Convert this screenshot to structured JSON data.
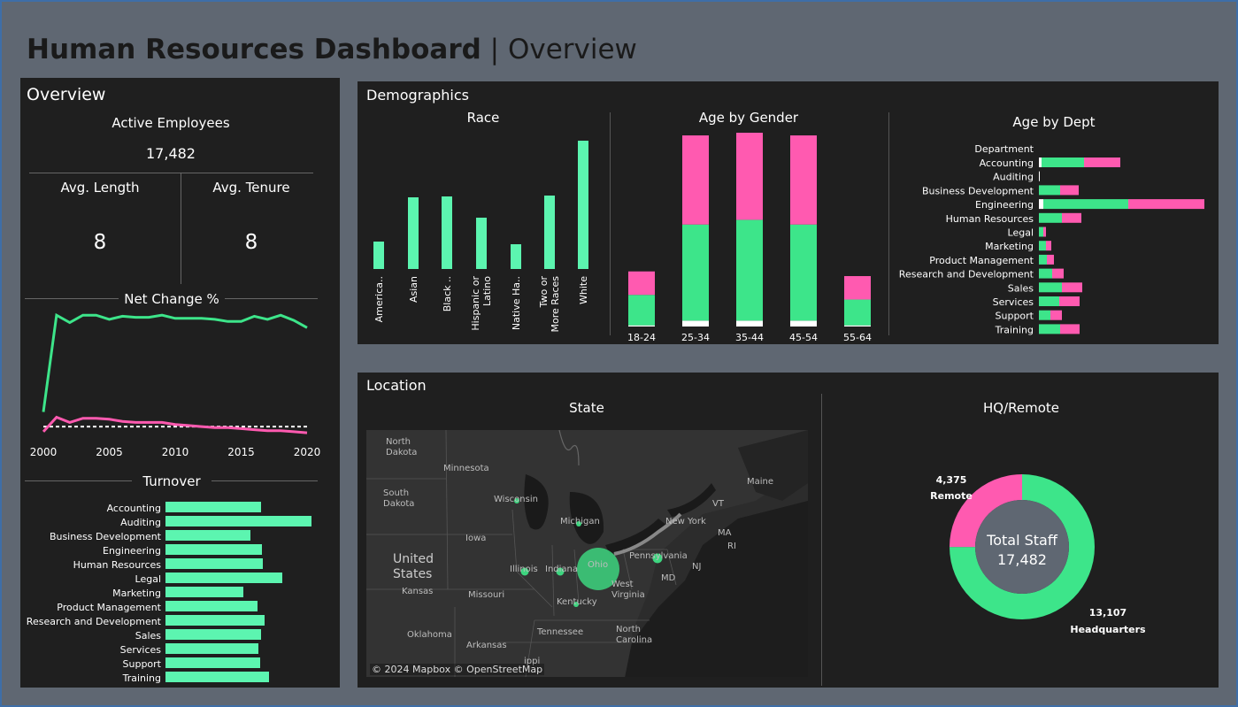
{
  "title": {
    "bold": "Human Resources Dashboard",
    "light": " | Overview"
  },
  "overview": {
    "title": "Overview",
    "active_label": "Active Employees",
    "active_value": "17,482",
    "avg_length_label": "Avg. Length",
    "avg_length_value": "8",
    "avg_tenure_label": "Avg. Tenure",
    "avg_tenure_value": "8",
    "net_change_label": "Net Change %",
    "turnover_label": "Turnover"
  },
  "colors": {
    "green": "#3de58a",
    "pink": "#ff5ab0",
    "mint": "#5cf5b0",
    "panel": "#1f1f1f"
  },
  "net_change": {
    "x_ticks": [
      "2000",
      "2005",
      "2010",
      "2015",
      "2020"
    ],
    "years": [
      2000,
      2001,
      2002,
      2003,
      2004,
      2005,
      2006,
      2007,
      2008,
      2009,
      2010,
      2011,
      2012,
      2013,
      2014,
      2015,
      2016,
      2017,
      2018,
      2019,
      2020
    ],
    "green": [
      1.0,
      10.3,
      9.6,
      10.3,
      10.3,
      9.9,
      10.2,
      10.1,
      10.1,
      10.3,
      10.0,
      10.0,
      10.0,
      9.9,
      9.7,
      9.7,
      10.2,
      9.9,
      10.3,
      9.8,
      9.1
    ],
    "pink": [
      -0.9,
      0.5,
      0.0,
      0.4,
      0.4,
      0.3,
      0.1,
      0.0,
      0.0,
      0.0,
      -0.2,
      -0.3,
      -0.4,
      -0.5,
      -0.5,
      -0.6,
      -0.7,
      -0.8,
      -0.8,
      -0.9,
      -1.0
    ],
    "baseline": -0.4
  },
  "turnover": {
    "departments": [
      "Accounting",
      "Auditing",
      "Business Development",
      "Engineering",
      "Human Resources",
      "Legal",
      "Marketing",
      "Product Management",
      "Research and Development",
      "Sales",
      "Services",
      "Support",
      "Training"
    ],
    "values": [
      108,
      165,
      96,
      109,
      110,
      132,
      88,
      104,
      112,
      108,
      105,
      107,
      117
    ]
  },
  "demographics": {
    "title": "Demographics",
    "race": {
      "title": "Race",
      "categories": [
        "America..",
        "Asian",
        "Black ..",
        "Hispanic or Latino",
        "Native Ha..",
        "Two or More Races",
        "White"
      ],
      "values": [
        31,
        81,
        82,
        58,
        28,
        83,
        145
      ]
    },
    "age_gender": {
      "title": "Age by Gender",
      "categories": [
        "18-24",
        "25-34",
        "35-44",
        "45-54",
        "55-64"
      ],
      "green": [
        1300,
        4100,
        4300,
        4100,
        1100
      ],
      "pink": [
        1000,
        3800,
        3800,
        3800,
        1000
      ],
      "white": [
        50,
        250,
        250,
        250,
        50
      ]
    },
    "age_dept": {
      "title": "Age by Dept",
      "header": "Department",
      "departments": [
        "Accounting",
        "Auditing",
        "Business Development",
        "Engineering",
        "Human Resources",
        "Legal",
        "Marketing",
        "Product Management",
        "Research and Development",
        "Sales",
        "Services",
        "Support",
        "Training"
      ],
      "white": [
        3,
        1,
        0,
        5,
        0,
        0,
        0,
        0,
        0,
        0,
        0,
        0,
        0
      ],
      "green": [
        48,
        0,
        24,
        96,
        26,
        5,
        8,
        9,
        15,
        26,
        23,
        13,
        24
      ],
      "pink": [
        41,
        0,
        21,
        86,
        22,
        3,
        6,
        8,
        13,
        23,
        23,
        13,
        22
      ]
    }
  },
  "location": {
    "title": "Location",
    "state_title": "State",
    "hq_title": "HQ/Remote",
    "map_labels": [
      {
        "id": "north-dakota",
        "text": "North\nDakota"
      },
      {
        "id": "minnesota",
        "text": "Minnesota"
      },
      {
        "id": "south-dakota",
        "text": "South\nDakota"
      },
      {
        "id": "wisconsin",
        "text": "Wisconsin"
      },
      {
        "id": "michigan",
        "text": "Michigan"
      },
      {
        "id": "iowa",
        "text": "Iowa"
      },
      {
        "id": "united-states",
        "text": "United\nStates"
      },
      {
        "id": "illinois",
        "text": "Illinois"
      },
      {
        "id": "indiana",
        "text": "Indiana"
      },
      {
        "id": "ohio",
        "text": "Ohio"
      },
      {
        "id": "kansas",
        "text": "Kansas"
      },
      {
        "id": "missouri",
        "text": "Missouri"
      },
      {
        "id": "kentucky",
        "text": "Kentucky"
      },
      {
        "id": "west-virginia",
        "text": "West\nVirginia"
      },
      {
        "id": "pennsylvania",
        "text": "Pennsylvania"
      },
      {
        "id": "new-york",
        "text": "New York"
      },
      {
        "id": "maine",
        "text": "Maine"
      },
      {
        "id": "vt",
        "text": "VT"
      },
      {
        "id": "ma",
        "text": "MA"
      },
      {
        "id": "ri",
        "text": "RI"
      },
      {
        "id": "nj",
        "text": "NJ"
      },
      {
        "id": "md",
        "text": "MD"
      },
      {
        "id": "oklahoma",
        "text": "Oklahoma"
      },
      {
        "id": "arkansas",
        "text": "Arkansas"
      },
      {
        "id": "tennessee",
        "text": "Tennessee"
      },
      {
        "id": "north-carolina",
        "text": "North\nCarolina"
      },
      {
        "id": "mississippi",
        "text": "ippi"
      }
    ],
    "copyright": "© 2024 Mapbox © OpenStreetMap",
    "donut": {
      "center_label": "Total Staff",
      "center_value": "17,482",
      "remote_value": "4,375",
      "remote_label": "Remote",
      "hq_value": "13,107",
      "hq_label": "Headquarters",
      "remote": 4375,
      "hq": 13107
    }
  }
}
